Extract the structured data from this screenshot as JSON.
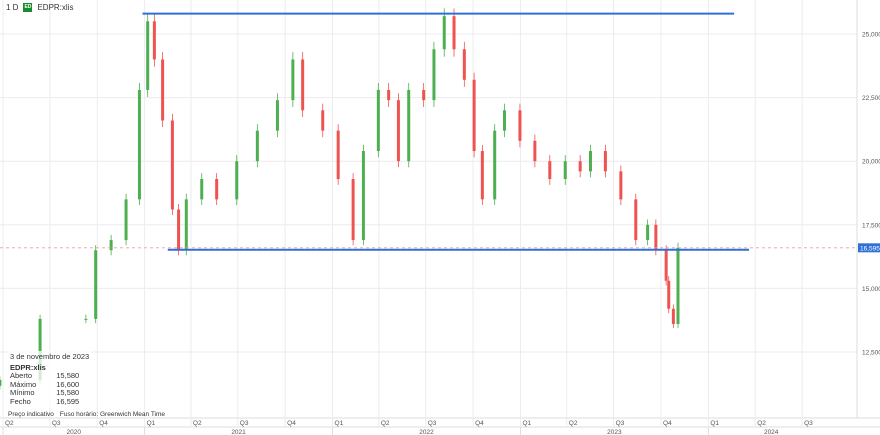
{
  "header": {
    "interval": "1 D",
    "logo_text": "ED",
    "symbol": "EDPR:xlis"
  },
  "info_panel": {
    "date": "3 de novembro de 2023",
    "symbol": "EDPR:xlis",
    "rows": [
      {
        "label": "Aberto",
        "value": "15,580"
      },
      {
        "label": "Máximo",
        "value": "16,600"
      },
      {
        "label": "Mínimo",
        "value": "15,580"
      },
      {
        "label": "Fecho",
        "value": "16,595"
      }
    ],
    "footer_left": "Preço indicativo",
    "footer_right": "Fuso horário: Greenwich Mean Time"
  },
  "chart_data": {
    "type": "candlestick",
    "title": "",
    "ylim": [
      10000,
      26500
    ],
    "xlim": [
      "2020-04-01",
      "2024-09-01"
    ],
    "grid": true,
    "y_ticks": [
      12500,
      15000,
      17500,
      20000,
      22500,
      25000
    ],
    "y_tick_labels": [
      "12,500",
      "15,000",
      "17,500",
      "20,000",
      "22,500",
      "25,000"
    ],
    "x_quarter_ticks": [
      {
        "date": "2020-04-01",
        "label": "Q2"
      },
      {
        "date": "2020-07-01",
        "label": "Q3"
      },
      {
        "date": "2020-10-01",
        "label": "Q4"
      },
      {
        "date": "2021-01-01",
        "label": "Q1"
      },
      {
        "date": "2021-04-01",
        "label": "Q2"
      },
      {
        "date": "2021-07-01",
        "label": "Q3"
      },
      {
        "date": "2021-10-01",
        "label": "Q4"
      },
      {
        "date": "2022-01-01",
        "label": "Q1"
      },
      {
        "date": "2022-04-01",
        "label": "Q2"
      },
      {
        "date": "2022-07-01",
        "label": "Q3"
      },
      {
        "date": "2022-10-01",
        "label": "Q4"
      },
      {
        "date": "2023-01-01",
        "label": "Q1"
      },
      {
        "date": "2023-04-01",
        "label": "Q2"
      },
      {
        "date": "2023-07-01",
        "label": "Q3"
      },
      {
        "date": "2023-10-01",
        "label": "Q4"
      },
      {
        "date": "2024-01-01",
        "label": "Q1"
      },
      {
        "date": "2024-04-01",
        "label": "Q2"
      },
      {
        "date": "2024-07-01",
        "label": "Q3"
      }
    ],
    "x_year_labels": [
      {
        "year": "2020",
        "start": "2020-04-01",
        "end": "2021-01-01"
      },
      {
        "year": "2021",
        "start": "2021-01-01",
        "end": "2022-01-01"
      },
      {
        "year": "2022",
        "start": "2022-01-01",
        "end": "2023-01-01"
      },
      {
        "year": "2023",
        "start": "2023-01-01",
        "end": "2024-01-01"
      },
      {
        "year": "2024",
        "start": "2024-01-01",
        "end": "2024-09-01"
      }
    ],
    "last_price": 16595,
    "last_price_label": "16,595",
    "up_color": "#4caf50",
    "down_color": "#ef5350",
    "trendlines": [
      {
        "price": 25800,
        "from": "2020-12-28",
        "to": "2024-02-20",
        "color": "#2f6fd6"
      },
      {
        "price": 16520,
        "from": "2021-02-15",
        "to": "2024-03-20",
        "color": "#2f6fd6"
      }
    ],
    "series": [
      [
        "2020-03-26",
        11400
      ],
      [
        "2020-06-12",
        13800
      ],
      [
        "2020-09-09",
        13800
      ],
      [
        "2020-09-28",
        16500
      ],
      [
        "2020-10-28",
        16900
      ],
      [
        "2020-11-26",
        18500
      ],
      [
        "2020-12-22",
        22800
      ],
      [
        "2021-01-07",
        25500
      ],
      [
        "2021-01-20",
        24000
      ],
      [
        "2021-02-05",
        21600
      ],
      [
        "2021-02-24",
        18100
      ],
      [
        "2021-03-08",
        16500
      ],
      [
        "2021-03-23",
        18500
      ],
      [
        "2021-04-22",
        19300
      ],
      [
        "2021-05-21",
        18500
      ],
      [
        "2021-06-29",
        20000
      ],
      [
        "2021-08-08",
        21200
      ],
      [
        "2021-09-16",
        22400
      ],
      [
        "2021-10-16",
        24000
      ],
      [
        "2021-11-04",
        22000
      ],
      [
        "2021-12-13",
        21200
      ],
      [
        "2022-01-12",
        19300
      ],
      [
        "2022-02-10",
        16900
      ],
      [
        "2022-03-02",
        20400
      ],
      [
        "2022-03-31",
        22800
      ],
      [
        "2022-04-20",
        22400
      ],
      [
        "2022-05-09",
        20000
      ],
      [
        "2022-05-29",
        22800
      ],
      [
        "2022-06-27",
        22400
      ],
      [
        "2022-07-17",
        24400
      ],
      [
        "2022-08-06",
        25700
      ],
      [
        "2022-08-25",
        24400
      ],
      [
        "2022-09-14",
        23200
      ],
      [
        "2022-10-03",
        20400
      ],
      [
        "2022-10-19",
        18500
      ],
      [
        "2022-11-12",
        21200
      ],
      [
        "2022-12-01",
        22000
      ],
      [
        "2022-12-31",
        20800
      ],
      [
        "2023-01-29",
        20000
      ],
      [
        "2023-02-27",
        19300
      ],
      [
        "2023-03-29",
        20000
      ],
      [
        "2023-04-27",
        19600
      ],
      [
        "2023-05-17",
        20400
      ],
      [
        "2023-06-15",
        19600
      ],
      [
        "2023-07-15",
        18500
      ],
      [
        "2023-08-13",
        16900
      ],
      [
        "2023-09-05",
        17500
      ],
      [
        "2023-09-21",
        16500
      ],
      [
        "2023-10-11",
        15300
      ],
      [
        "2023-10-16",
        14200
      ],
      [
        "2023-10-25",
        13600
      ],
      [
        "2023-11-03",
        16595
      ]
    ]
  }
}
